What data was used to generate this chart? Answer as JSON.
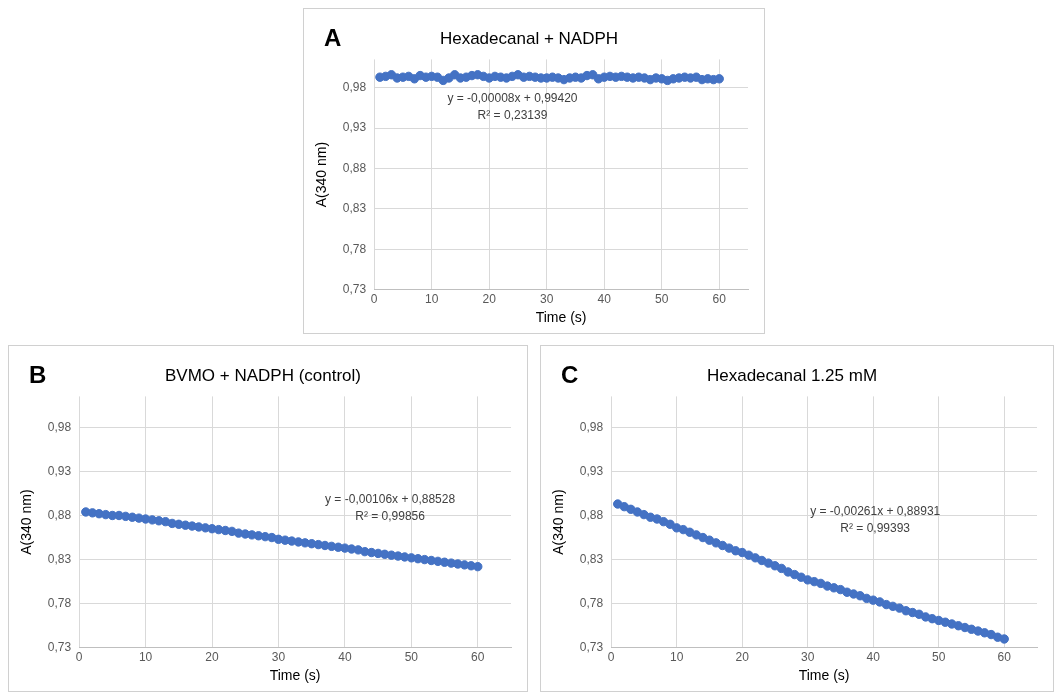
{
  "chart_data": [
    {
      "type": "scatter",
      "title": "Hexadecanal + NADPH",
      "xlabel": "Time (s)",
      "ylabel": "A(340 nm)",
      "annotations": [
        "A",
        "y = -0,00008x + 0,99420",
        "R² = 0,23139"
      ],
      "x": [
        1,
        2,
        3,
        4,
        5,
        6,
        7,
        8,
        9,
        10,
        11,
        12,
        13,
        14,
        15,
        16,
        17,
        18,
        19,
        20,
        21,
        22,
        23,
        24,
        25,
        26,
        27,
        28,
        29,
        30,
        31,
        32,
        33,
        34,
        35,
        36,
        37,
        38,
        39,
        40,
        41,
        42,
        43,
        44,
        45,
        46,
        47,
        48,
        49,
        50,
        51,
        52,
        53,
        54,
        55,
        56,
        57,
        58,
        59,
        60
      ],
      "series": [
        {
          "color": "#4472c4",
          "values": [
            0.993,
            0.994,
            0.996,
            0.992,
            0.993,
            0.994,
            0.991,
            0.995,
            0.993,
            0.994,
            0.993,
            0.989,
            0.992,
            0.996,
            0.992,
            0.993,
            0.995,
            0.996,
            0.994,
            0.992,
            0.994,
            0.993,
            0.992,
            0.994,
            0.996,
            0.993,
            0.994,
            0.993,
            0.992,
            0.992,
            0.993,
            0.992,
            0.99,
            0.992,
            0.993,
            0.992,
            0.995,
            0.996,
            0.991,
            0.993,
            0.994,
            0.993,
            0.994,
            0.993,
            0.992,
            0.993,
            0.992,
            0.99,
            0.992,
            0.991,
            0.989,
            0.991,
            0.992,
            0.993,
            0.992,
            0.993,
            0.99,
            0.991,
            0.99,
            0.991
          ]
        }
      ],
      "xlim": [
        0,
        65
      ],
      "xticks": [
        0,
        10,
        20,
        30,
        40,
        50,
        60
      ],
      "ylim": [
        0.73,
        1.015
      ],
      "yticks": [
        {
          "value": 0.73,
          "label": "0,73"
        },
        {
          "value": 0.78,
          "label": "0,78"
        },
        {
          "value": 0.83,
          "label": "0,83"
        },
        {
          "value": 0.88,
          "label": "0,88"
        },
        {
          "value": 0.93,
          "label": "0,93"
        },
        {
          "value": 0.98,
          "label": "0,98"
        }
      ],
      "grid": true,
      "legend": false,
      "marker": "circle"
    },
    {
      "type": "scatter",
      "title": "BVMO + NADPH (control)",
      "xlabel": "Time (s)",
      "ylabel": "A(340 nm)",
      "annotations": [
        "B",
        "y = -0,00106x + 0,88528",
        "R² = 0,99856"
      ],
      "x": [
        1,
        2,
        3,
        4,
        5,
        6,
        7,
        8,
        9,
        10,
        11,
        12,
        13,
        14,
        15,
        16,
        17,
        18,
        19,
        20,
        21,
        22,
        23,
        24,
        25,
        26,
        27,
        28,
        29,
        30,
        31,
        32,
        33,
        34,
        35,
        36,
        37,
        38,
        39,
        40,
        41,
        42,
        43,
        44,
        45,
        46,
        47,
        48,
        49,
        50,
        51,
        52,
        53,
        54,
        55,
        56,
        57,
        58,
        59,
        60
      ],
      "series": [
        {
          "color": "#4472c4",
          "values": [
            0.884,
            0.883,
            0.882,
            0.881,
            0.88,
            0.88,
            0.879,
            0.878,
            0.877,
            0.876,
            0.875,
            0.874,
            0.873,
            0.871,
            0.87,
            0.869,
            0.868,
            0.867,
            0.866,
            0.865,
            0.864,
            0.863,
            0.862,
            0.86,
            0.859,
            0.858,
            0.857,
            0.856,
            0.855,
            0.853,
            0.852,
            0.851,
            0.85,
            0.849,
            0.848,
            0.847,
            0.846,
            0.845,
            0.844,
            0.843,
            0.842,
            0.841,
            0.839,
            0.838,
            0.837,
            0.836,
            0.835,
            0.834,
            0.833,
            0.832,
            0.831,
            0.83,
            0.829,
            0.828,
            0.827,
            0.826,
            0.825,
            0.824,
            0.823,
            0.822
          ]
        }
      ],
      "xlim": [
        0,
        65
      ],
      "xticks": [
        0,
        10,
        20,
        30,
        40,
        50,
        60
      ],
      "ylim": [
        0.73,
        1.015
      ],
      "yticks": [
        {
          "value": 0.73,
          "label": "0,73"
        },
        {
          "value": 0.78,
          "label": "0,78"
        },
        {
          "value": 0.83,
          "label": "0,83"
        },
        {
          "value": 0.88,
          "label": "0,88"
        },
        {
          "value": 0.93,
          "label": "0,93"
        },
        {
          "value": 0.98,
          "label": "0,98"
        }
      ],
      "grid": true,
      "legend": false,
      "marker": "circle"
    },
    {
      "type": "scatter",
      "title": "Hexadecanal 1.25 mM",
      "xlabel": "Time (s)",
      "ylabel": "A(340 nm)",
      "annotations": [
        "C",
        "y = -0,00261x + 0,88931",
        "R² = 0,99393"
      ],
      "x": [
        1,
        2,
        3,
        4,
        5,
        6,
        7,
        8,
        9,
        10,
        11,
        12,
        13,
        14,
        15,
        16,
        17,
        18,
        19,
        20,
        21,
        22,
        23,
        24,
        25,
        26,
        27,
        28,
        29,
        30,
        31,
        32,
        33,
        34,
        35,
        36,
        37,
        38,
        39,
        40,
        41,
        42,
        43,
        44,
        45,
        46,
        47,
        48,
        49,
        50,
        51,
        52,
        53,
        54,
        55,
        56,
        57,
        58,
        59,
        60
      ],
      "series": [
        {
          "color": "#4472c4",
          "values": [
            0.893,
            0.89,
            0.887,
            0.884,
            0.881,
            0.878,
            0.876,
            0.873,
            0.87,
            0.866,
            0.864,
            0.861,
            0.858,
            0.855,
            0.852,
            0.849,
            0.846,
            0.843,
            0.84,
            0.838,
            0.835,
            0.832,
            0.829,
            0.826,
            0.823,
            0.82,
            0.816,
            0.813,
            0.81,
            0.807,
            0.805,
            0.803,
            0.8,
            0.798,
            0.796,
            0.793,
            0.791,
            0.789,
            0.786,
            0.784,
            0.782,
            0.779,
            0.777,
            0.775,
            0.772,
            0.77,
            0.768,
            0.765,
            0.763,
            0.761,
            0.759,
            0.757,
            0.755,
            0.753,
            0.751,
            0.749,
            0.747,
            0.745,
            0.742,
            0.74
          ]
        }
      ],
      "xlim": [
        0,
        65
      ],
      "xticks": [
        0,
        10,
        20,
        30,
        40,
        50,
        60
      ],
      "ylim": [
        0.73,
        1.015
      ],
      "yticks": [
        {
          "value": 0.73,
          "label": "0,73"
        },
        {
          "value": 0.78,
          "label": "0,78"
        },
        {
          "value": 0.83,
          "label": "0,83"
        },
        {
          "value": 0.88,
          "label": "0,88"
        },
        {
          "value": 0.93,
          "label": "0,93"
        },
        {
          "value": 0.98,
          "label": "0,98"
        }
      ],
      "grid": true,
      "legend": false,
      "marker": "circle"
    }
  ]
}
